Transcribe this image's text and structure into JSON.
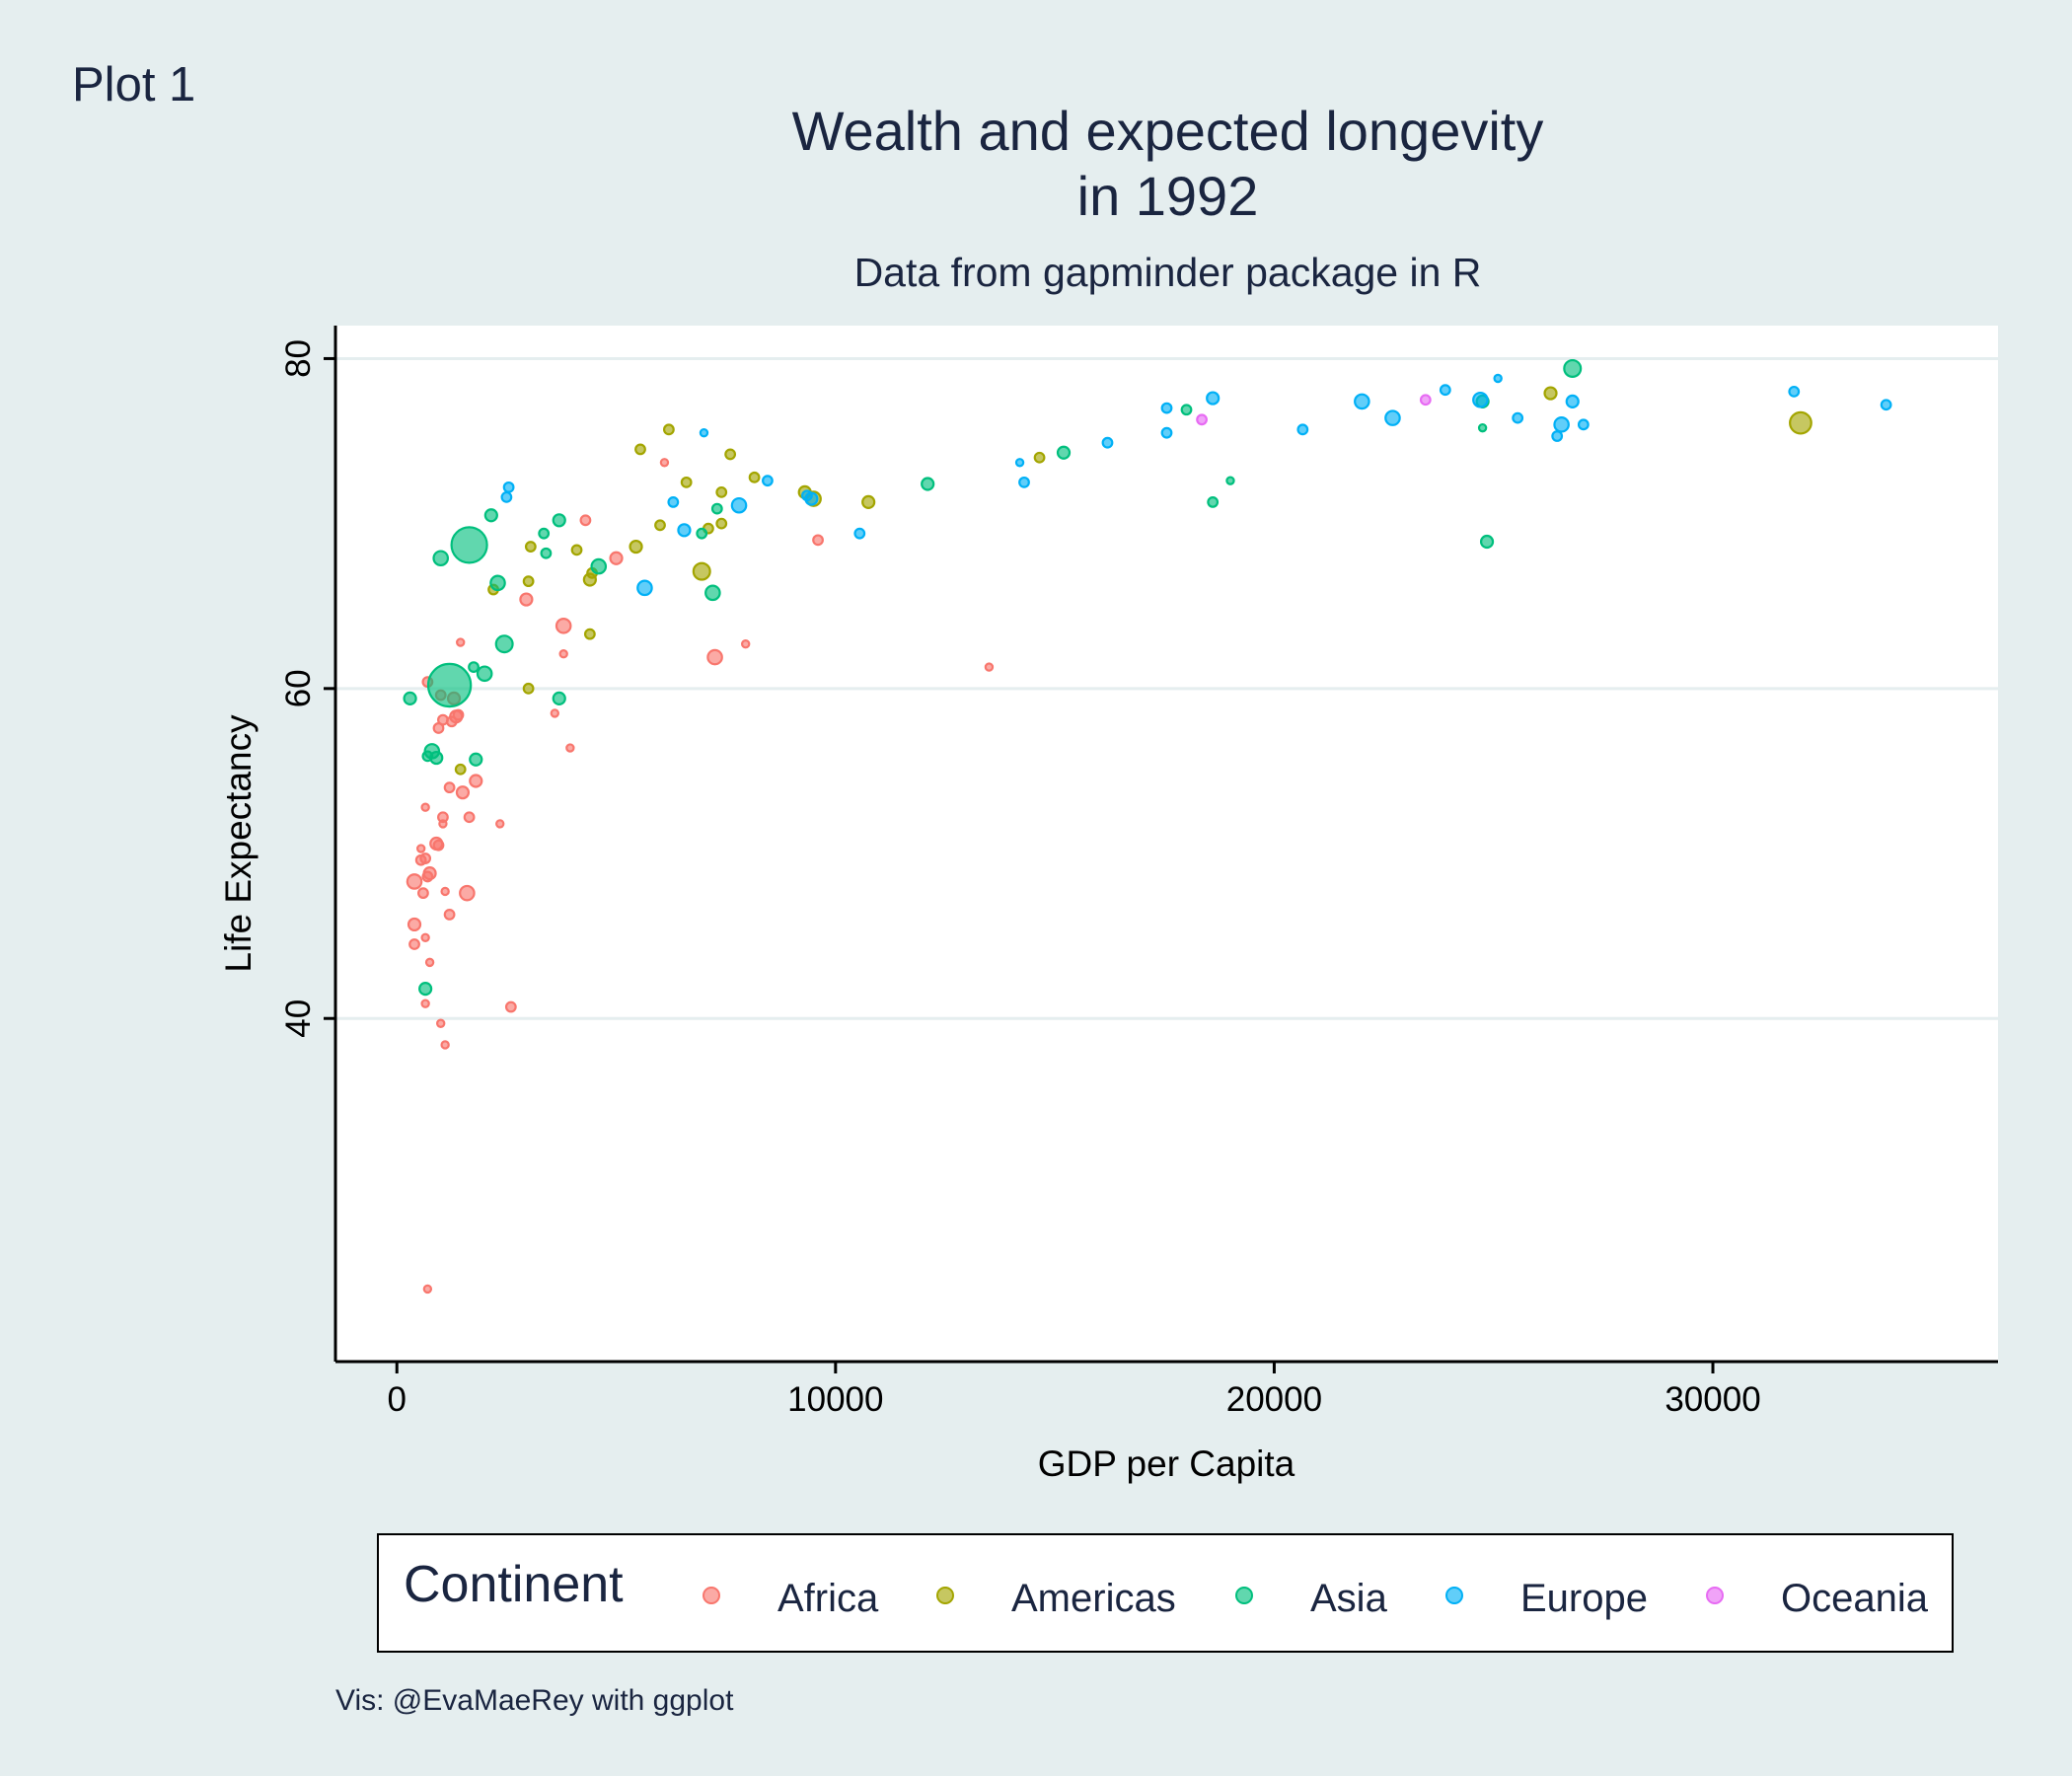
{
  "tag": "Plot 1",
  "colors": {
    "Africa": "#f8766d",
    "Americas": "#a3a500",
    "Asia": "#00bf7d",
    "Europe": "#00b0f6",
    "Oceania": "#e76bf3"
  },
  "chart_data": {
    "type": "scatter",
    "title_lines": [
      "Wealth and expected longevity",
      "in 1992"
    ],
    "subtitle": "Data from gapminder package in R",
    "xlabel": "GDP per Capita",
    "ylabel": "Life Expectancy",
    "xlim": [
      -1400,
      36500
    ],
    "ylim": [
      19.2,
      82
    ],
    "xticks": [
      0,
      10000,
      20000,
      30000
    ],
    "yticks": [
      40,
      60,
      80
    ],
    "grid": "horizontal major",
    "legend": {
      "title": "Continent",
      "placement": "bottom",
      "entries": [
        "Africa",
        "Americas",
        "Asia",
        "Europe",
        "Oceania"
      ]
    },
    "size_encoding": "population (no legend shown)",
    "series": [
      {
        "name": "Africa",
        "points": [
          [
            700,
            23.6,
            3
          ],
          [
            1100,
            38.4,
            3
          ],
          [
            1000,
            39.7,
            3
          ],
          [
            650,
            40.9,
            3
          ],
          [
            2600,
            40.7,
            4
          ],
          [
            1600,
            47.6,
            6
          ],
          [
            1200,
            46.3,
            4
          ],
          [
            1100,
            47.7,
            3
          ],
          [
            600,
            47.6,
            4
          ],
          [
            400,
            45.7,
            5
          ],
          [
            400,
            44.5,
            4
          ],
          [
            650,
            44.9,
            3
          ],
          [
            750,
            43.4,
            3
          ],
          [
            400,
            48.3,
            6
          ],
          [
            750,
            48.8,
            5
          ],
          [
            700,
            48.6,
            4
          ],
          [
            550,
            49.6,
            4
          ],
          [
            650,
            49.7,
            4
          ],
          [
            550,
            50.3,
            3
          ],
          [
            900,
            50.6,
            5
          ],
          [
            950,
            50.5,
            4
          ],
          [
            1050,
            52.2,
            4
          ],
          [
            1050,
            51.8,
            3
          ],
          [
            1650,
            52.2,
            4
          ],
          [
            2350,
            51.8,
            3
          ],
          [
            650,
            52.8,
            3
          ],
          [
            1500,
            53.7,
            5
          ],
          [
            1200,
            54.0,
            4
          ],
          [
            1800,
            54.4,
            5
          ],
          [
            3950,
            56.4,
            3
          ],
          [
            950,
            57.6,
            4
          ],
          [
            1050,
            58.1,
            4
          ],
          [
            1250,
            58.0,
            4
          ],
          [
            1350,
            58.3,
            5
          ],
          [
            1400,
            58.4,
            4
          ],
          [
            1300,
            59.4,
            5
          ],
          [
            1000,
            59.6,
            4
          ],
          [
            700,
            60.4,
            4
          ],
          [
            3600,
            58.5,
            3
          ],
          [
            3800,
            62.1,
            3
          ],
          [
            1450,
            62.8,
            3
          ],
          [
            2950,
            65.4,
            5
          ],
          [
            3800,
            63.8,
            6
          ],
          [
            7250,
            61.9,
            6
          ],
          [
            7950,
            62.7,
            3
          ],
          [
            13500,
            61.3,
            3
          ],
          [
            5000,
            67.9,
            5
          ],
          [
            4300,
            70.2,
            4
          ],
          [
            6100,
            73.7,
            3
          ],
          [
            9600,
            69.0,
            4
          ]
        ]
      },
      {
        "name": "Americas",
        "points": [
          [
            1450,
            55.1,
            4
          ],
          [
            3000,
            60.0,
            4
          ],
          [
            2200,
            66.0,
            4
          ],
          [
            3000,
            66.5,
            4
          ],
          [
            3050,
            68.6,
            4
          ],
          [
            4100,
            68.4,
            4
          ],
          [
            4400,
            66.6,
            5
          ],
          [
            4450,
            67.0,
            4
          ],
          [
            4400,
            63.3,
            4
          ],
          [
            5450,
            68.6,
            5
          ],
          [
            6000,
            69.9,
            4
          ],
          [
            7100,
            69.7,
            4
          ],
          [
            7400,
            70.0,
            4
          ],
          [
            6950,
            67.1,
            7
          ],
          [
            6600,
            72.5,
            4
          ],
          [
            7400,
            71.9,
            4
          ],
          [
            5550,
            74.5,
            4
          ],
          [
            6200,
            75.7,
            4
          ],
          [
            7600,
            74.2,
            4
          ],
          [
            8150,
            72.8,
            4
          ],
          [
            9300,
            71.9,
            5
          ],
          [
            9500,
            71.5,
            6
          ],
          [
            10750,
            71.3,
            5
          ],
          [
            14650,
            74.0,
            4
          ],
          [
            26300,
            77.9,
            5
          ],
          [
            32000,
            76.1,
            9
          ]
        ]
      },
      {
        "name": "Asia",
        "points": [
          [
            650,
            41.8,
            5
          ],
          [
            300,
            59.4,
            5
          ],
          [
            700,
            55.9,
            4
          ],
          [
            800,
            56.2,
            6
          ],
          [
            900,
            55.8,
            5
          ],
          [
            1800,
            55.7,
            5
          ],
          [
            1750,
            61.3,
            4
          ],
          [
            1200,
            60.2,
            18
          ],
          [
            2000,
            60.9,
            6
          ],
          [
            1650,
            68.7,
            15
          ],
          [
            1000,
            67.9,
            6
          ],
          [
            2300,
            66.4,
            6
          ],
          [
            2450,
            62.7,
            7
          ],
          [
            2150,
            70.5,
            5
          ],
          [
            3700,
            59.4,
            5
          ],
          [
            3350,
            69.4,
            4
          ],
          [
            3700,
            70.2,
            5
          ],
          [
            3400,
            68.2,
            4
          ],
          [
            4600,
            67.4,
            6
          ],
          [
            7300,
            70.9,
            4
          ],
          [
            6950,
            69.4,
            4
          ],
          [
            7200,
            65.8,
            6
          ],
          [
            12100,
            72.4,
            5
          ],
          [
            15200,
            74.3,
            5
          ],
          [
            18000,
            76.9,
            4
          ],
          [
            18600,
            71.3,
            4
          ],
          [
            19000,
            72.6,
            3
          ],
          [
            24750,
            75.8,
            3
          ],
          [
            24850,
            68.9,
            5
          ],
          [
            24750,
            77.4,
            5
          ],
          [
            26800,
            79.4,
            7
          ]
        ]
      },
      {
        "name": "Europe",
        "points": [
          [
            2500,
            71.6,
            4
          ],
          [
            2550,
            72.2,
            4
          ],
          [
            5650,
            66.1,
            6
          ],
          [
            6300,
            71.3,
            4
          ],
          [
            6550,
            69.6,
            5
          ],
          [
            7000,
            75.5,
            3
          ],
          [
            7800,
            71.1,
            6
          ],
          [
            8450,
            72.6,
            4
          ],
          [
            9350,
            71.7,
            4
          ],
          [
            9450,
            71.5,
            5
          ],
          [
            10550,
            69.4,
            4
          ],
          [
            14200,
            73.7,
            3
          ],
          [
            14300,
            72.5,
            4
          ],
          [
            16200,
            74.9,
            4
          ],
          [
            17550,
            75.5,
            4
          ],
          [
            17550,
            77.0,
            4
          ],
          [
            18600,
            77.6,
            5
          ],
          [
            20650,
            75.7,
            4
          ],
          [
            22000,
            77.4,
            6
          ],
          [
            22700,
            76.4,
            6
          ],
          [
            23900,
            78.1,
            4
          ],
          [
            24700,
            77.5,
            6
          ],
          [
            25100,
            78.8,
            3
          ],
          [
            25550,
            76.4,
            4
          ],
          [
            26450,
            75.3,
            4
          ],
          [
            26550,
            76.0,
            6
          ],
          [
            26800,
            77.4,
            5
          ],
          [
            27050,
            76.0,
            4
          ],
          [
            31850,
            78.0,
            4
          ],
          [
            33950,
            77.2,
            4
          ]
        ]
      },
      {
        "name": "Oceania",
        "points": [
          [
            18350,
            76.3,
            4
          ],
          [
            23450,
            77.5,
            4
          ]
        ]
      }
    ]
  },
  "caption": "Vis: @EvaMaeRey with ggplot"
}
